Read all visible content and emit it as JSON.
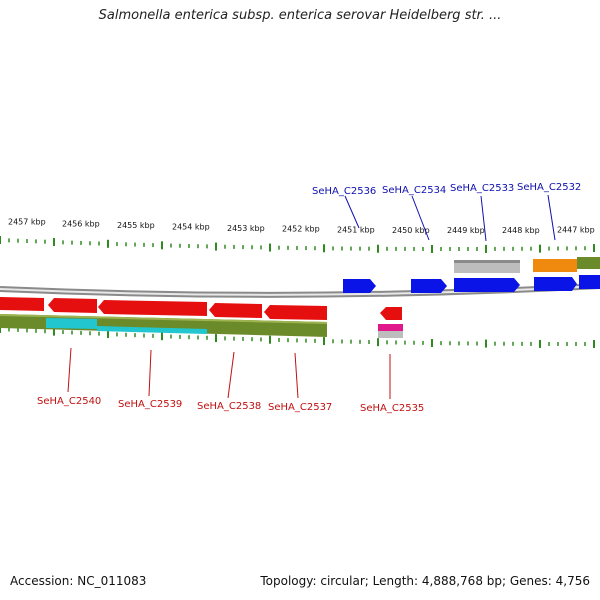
{
  "header": {
    "title": "Salmonella enterica subsp. enterica serovar Heidelberg str. ..."
  },
  "footer": {
    "accession": "Accession: NC_011083",
    "topology": "Topology: circular; Length: 4,888,768 bp; Genes: 4,756"
  },
  "map": {
    "ruler_labels": [
      "2457 kbp",
      "2456 kbp",
      "2455 kbp",
      "2454 kbp",
      "2453 kbp",
      "2452 kbp",
      "2451 kbp",
      "2450 kbp",
      "2449 kbp",
      "2448 kbp",
      "2447 kbp"
    ],
    "top_genes": [
      "SeHA_C2536",
      "SeHA_C2534",
      "SeHA_C2533",
      "SeHA_C2532"
    ],
    "bottom_genes": [
      "SeHA_C2540",
      "SeHA_C2539",
      "SeHA_C2538",
      "SeHA_C2537",
      "SeHA_C2535"
    ],
    "colors": {
      "forward_gene": "#0a14e6",
      "reverse_gene": "#e60f0f",
      "backbone": "#8a8a8a",
      "tick": "#2f8a1f",
      "olive_track": "#6b8a2a",
      "cyan_track": "#21c6cf",
      "gray_track": "#bdbdbd",
      "orange_track": "#f08a0f",
      "magenta_track": "#e0188c",
      "top_label": "#1010b0",
      "bottom_label": "#c01010"
    }
  }
}
